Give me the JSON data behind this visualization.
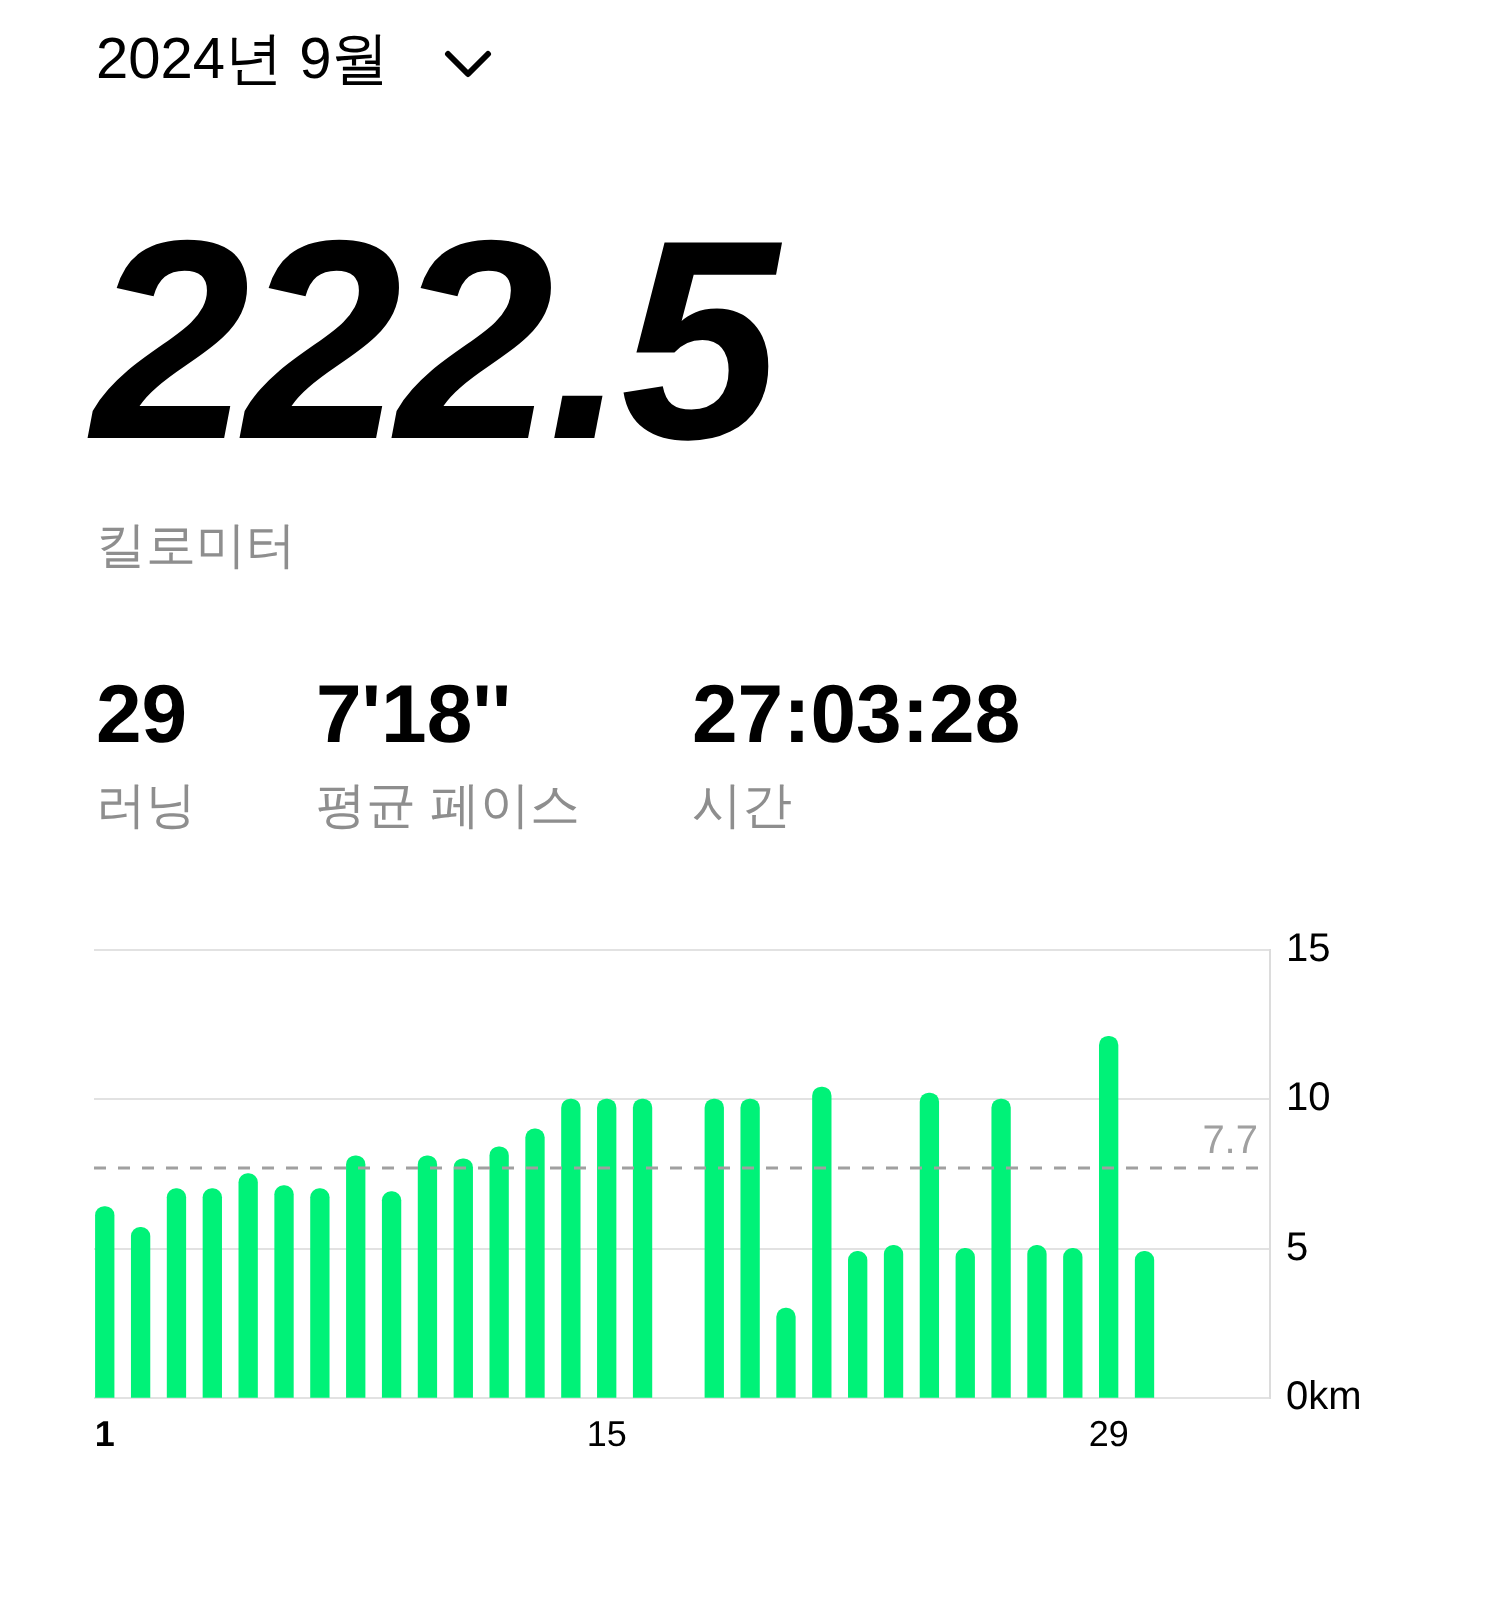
{
  "chart_data": {
    "type": "bar",
    "title": "2024년 9월",
    "annotations": [
      "222.5",
      "킬로미터",
      "29",
      "러닝",
      "7'18''",
      "평균 페이스",
      "27:03:28",
      "시간"
    ],
    "x": [
      1,
      2,
      3,
      4,
      5,
      6,
      7,
      8,
      9,
      10,
      11,
      12,
      13,
      14,
      15,
      16,
      17,
      18,
      19,
      20,
      21,
      22,
      23,
      24,
      25,
      26,
      27,
      28,
      29,
      30
    ],
    "values": [
      6.4,
      5.7,
      7.0,
      7.0,
      7.5,
      7.1,
      7.0,
      8.1,
      6.9,
      8.1,
      8.0,
      8.4,
      9.0,
      10.0,
      10.0,
      10.0,
      null,
      10.0,
      10.0,
      3.0,
      10.4,
      4.9,
      5.1,
      10.2,
      5.0,
      10.0,
      5.1,
      5.0,
      12.1,
      4.9
    ],
    "color": "#00f278",
    "xlim": [
      0.7,
      33.5
    ],
    "xticks": [
      1,
      15,
      29
    ],
    "ylim": [
      0,
      15
    ],
    "yticks": [
      {
        "value": 0,
        "label": "0km"
      },
      5,
      10,
      15
    ],
    "grid": "y",
    "ref_lines": [
      {
        "axis": "y",
        "value": 7.7,
        "label": "7.7",
        "color": "#a0a0a0",
        "line_style": "dashed"
      }
    ]
  }
}
